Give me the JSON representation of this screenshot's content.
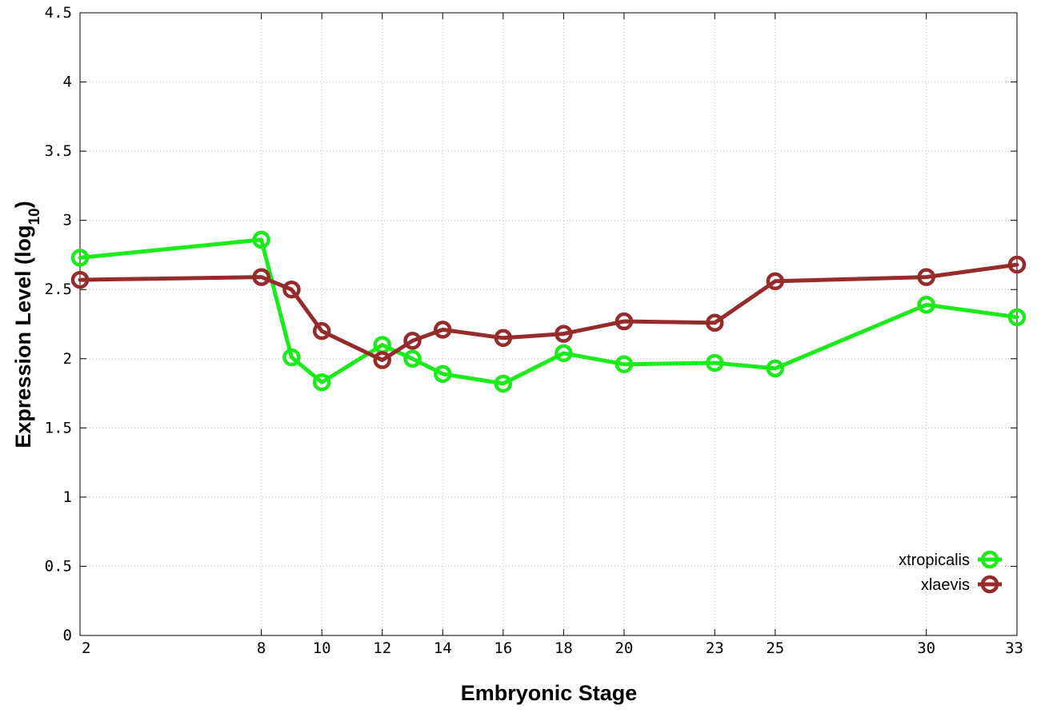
{
  "chart_data": {
    "type": "line",
    "xlabel": "Embryonic Stage",
    "ylabel_main": "Expression Level (log",
    "ylabel_sub": "10",
    "ylabel_close": ")",
    "x": [
      2,
      8,
      9,
      10,
      12,
      13,
      14,
      16,
      18,
      20,
      23,
      25,
      30,
      33
    ],
    "x_tick_labels": [
      "2",
      "8",
      "10",
      "12",
      "14",
      "16",
      "18",
      "20",
      "23",
      "25",
      "30",
      "33"
    ],
    "x_ticks": [
      2,
      8,
      10,
      12,
      14,
      16,
      18,
      20,
      23,
      25,
      30,
      33
    ],
    "xlim": [
      2,
      33
    ],
    "ylim": [
      0,
      4.5
    ],
    "y_ticks": [
      0,
      0.5,
      1,
      1.5,
      2,
      2.5,
      3,
      3.5,
      4,
      4.5
    ],
    "y_tick_labels": [
      "0",
      "0.5",
      "1",
      "1.5",
      "2",
      "2.5",
      "3",
      "3.5",
      "4",
      "4.5"
    ],
    "grid": true,
    "legend_position": "bottom-right",
    "series": [
      {
        "name": "xtropicalis",
        "color": "#1aec1a",
        "values": [
          2.73,
          2.86,
          2.01,
          1.83,
          2.1,
          2.0,
          1.89,
          1.82,
          2.04,
          1.96,
          1.97,
          1.93,
          2.39,
          2.3
        ]
      },
      {
        "name": "xlaevis",
        "color": "#962b2b",
        "values": [
          2.57,
          2.59,
          2.5,
          2.2,
          1.99,
          2.13,
          2.21,
          2.15,
          2.18,
          2.27,
          2.26,
          2.56,
          2.59,
          2.68
        ]
      }
    ]
  }
}
